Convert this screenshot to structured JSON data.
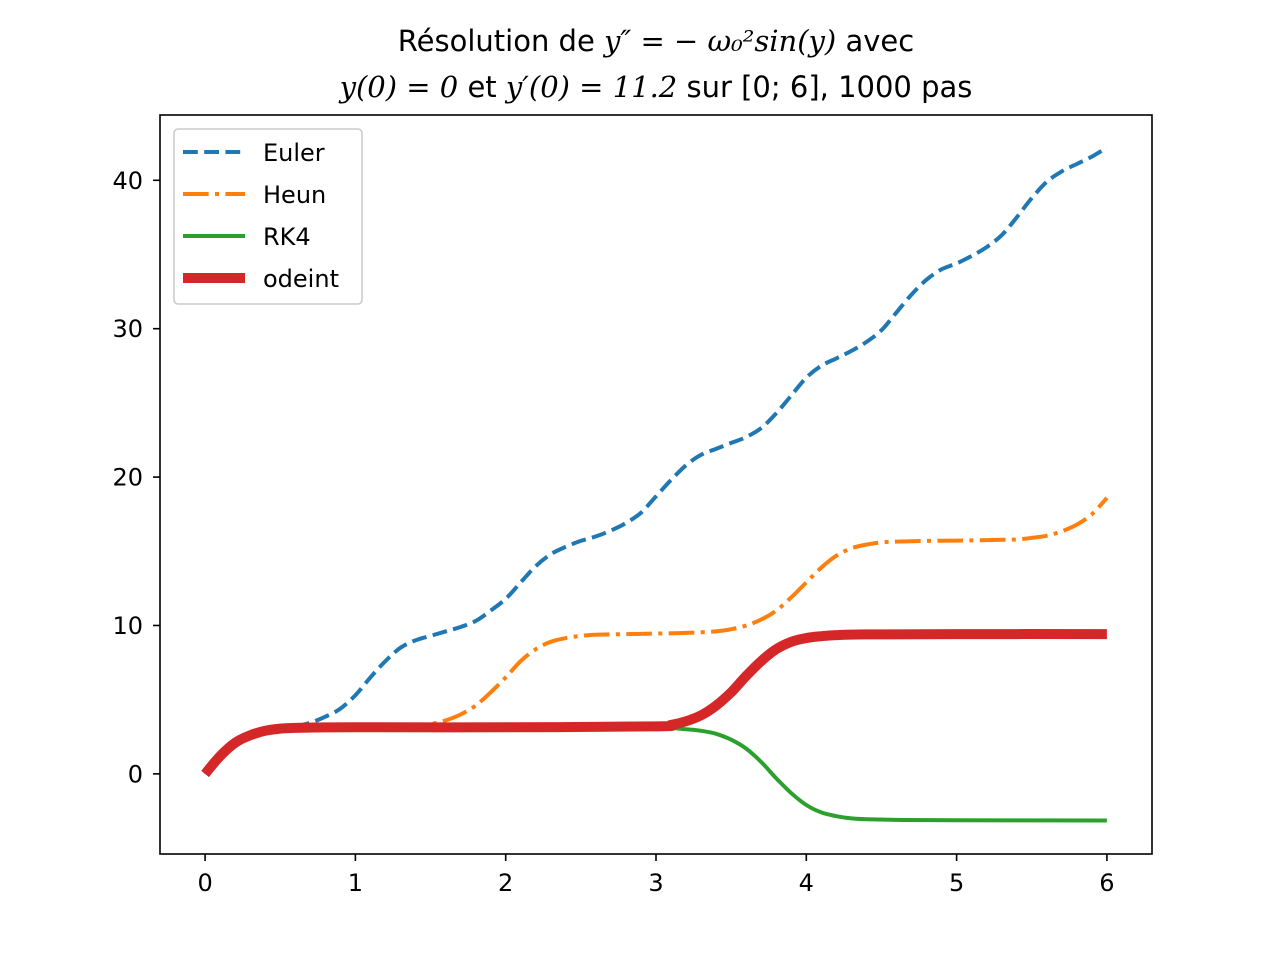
{
  "chart_data": {
    "type": "line",
    "title_line1_prefix": "Résolution de",
    "title_line1_equation": "y″ = − ω₀²sin(y)",
    "title_line1_suffix": "avec",
    "title_line2_cond1": "y(0) = 0",
    "title_line2_mid": "et",
    "title_line2_cond2": "y′(0) = 11.2",
    "title_line2_suffix": "sur [0; 6], 1000 pas",
    "xlabel": "",
    "ylabel": "",
    "xlim": [
      -0.3,
      6.3
    ],
    "ylim": [
      -5.4,
      44.4
    ],
    "xticks": [
      0,
      1,
      2,
      3,
      4,
      5,
      6
    ],
    "yticks": [
      0,
      10,
      20,
      30,
      40
    ],
    "grid": false,
    "legend_position": "top-left",
    "series": [
      {
        "name": "Euler",
        "color": "#1f77b4",
        "style": "dashed",
        "points": [
          [
            0,
            0
          ],
          [
            0.1,
            1.2
          ],
          [
            0.2,
            2.1
          ],
          [
            0.3,
            2.6
          ],
          [
            0.4,
            2.9
          ],
          [
            0.5,
            3.1
          ],
          [
            0.6,
            3.2
          ],
          [
            0.7,
            3.45
          ],
          [
            0.8,
            3.85
          ],
          [
            0.9,
            4.4
          ],
          [
            1.0,
            5.3
          ],
          [
            1.1,
            6.5
          ],
          [
            1.2,
            7.6
          ],
          [
            1.3,
            8.5
          ],
          [
            1.4,
            9.0
          ],
          [
            1.5,
            9.3
          ],
          [
            1.6,
            9.6
          ],
          [
            1.7,
            9.9
          ],
          [
            1.8,
            10.3
          ],
          [
            1.9,
            11.0
          ],
          [
            2.0,
            11.8
          ],
          [
            2.1,
            12.9
          ],
          [
            2.2,
            14.0
          ],
          [
            2.3,
            14.8
          ],
          [
            2.4,
            15.3
          ],
          [
            2.5,
            15.7
          ],
          [
            2.6,
            16.0
          ],
          [
            2.7,
            16.4
          ],
          [
            2.8,
            16.9
          ],
          [
            2.9,
            17.6
          ],
          [
            3.0,
            18.7
          ],
          [
            3.1,
            19.8
          ],
          [
            3.2,
            20.8
          ],
          [
            3.3,
            21.5
          ],
          [
            3.4,
            21.9
          ],
          [
            3.5,
            22.3
          ],
          [
            3.6,
            22.7
          ],
          [
            3.7,
            23.3
          ],
          [
            3.8,
            24.3
          ],
          [
            3.9,
            25.5
          ],
          [
            4.0,
            26.7
          ],
          [
            4.1,
            27.5
          ],
          [
            4.2,
            28.0
          ],
          [
            4.3,
            28.5
          ],
          [
            4.4,
            29.1
          ],
          [
            4.5,
            29.9
          ],
          [
            4.6,
            31.1
          ],
          [
            4.7,
            32.3
          ],
          [
            4.8,
            33.3
          ],
          [
            4.9,
            34.0
          ],
          [
            5.0,
            34.4
          ],
          [
            5.1,
            34.9
          ],
          [
            5.2,
            35.5
          ],
          [
            5.3,
            36.3
          ],
          [
            5.4,
            37.5
          ],
          [
            5.5,
            38.8
          ],
          [
            5.6,
            39.9
          ],
          [
            5.7,
            40.6
          ],
          [
            5.8,
            41.1
          ],
          [
            5.9,
            41.6
          ],
          [
            6.0,
            42.2
          ]
        ]
      },
      {
        "name": "Heun",
        "color": "#ff7f0e",
        "style": "dashdot",
        "points": [
          [
            0,
            0
          ],
          [
            0.1,
            1.2
          ],
          [
            0.2,
            2.1
          ],
          [
            0.3,
            2.6
          ],
          [
            0.4,
            2.9
          ],
          [
            0.5,
            3.05
          ],
          [
            0.6,
            3.1
          ],
          [
            0.8,
            3.13
          ],
          [
            1.0,
            3.14
          ],
          [
            1.2,
            3.15
          ],
          [
            1.4,
            3.2
          ],
          [
            1.5,
            3.35
          ],
          [
            1.6,
            3.6
          ],
          [
            1.7,
            4.0
          ],
          [
            1.8,
            4.6
          ],
          [
            1.9,
            5.5
          ],
          [
            2.0,
            6.5
          ],
          [
            2.1,
            7.6
          ],
          [
            2.2,
            8.4
          ],
          [
            2.3,
            8.9
          ],
          [
            2.4,
            9.15
          ],
          [
            2.5,
            9.3
          ],
          [
            2.6,
            9.38
          ],
          [
            2.8,
            9.42
          ],
          [
            3.0,
            9.45
          ],
          [
            3.2,
            9.5
          ],
          [
            3.4,
            9.6
          ],
          [
            3.5,
            9.75
          ],
          [
            3.6,
            10.0
          ],
          [
            3.7,
            10.4
          ],
          [
            3.8,
            11.0
          ],
          [
            3.9,
            11.9
          ],
          [
            4.0,
            12.9
          ],
          [
            4.1,
            13.9
          ],
          [
            4.2,
            14.7
          ],
          [
            4.3,
            15.2
          ],
          [
            4.4,
            15.45
          ],
          [
            4.5,
            15.6
          ],
          [
            4.6,
            15.65
          ],
          [
            4.8,
            15.7
          ],
          [
            5.0,
            15.72
          ],
          [
            5.2,
            15.75
          ],
          [
            5.4,
            15.8
          ],
          [
            5.5,
            15.9
          ],
          [
            5.6,
            16.05
          ],
          [
            5.7,
            16.35
          ],
          [
            5.8,
            16.8
          ],
          [
            5.9,
            17.5
          ],
          [
            6.0,
            18.6
          ]
        ]
      },
      {
        "name": "RK4",
        "color": "#2ca02c",
        "style": "solid",
        "points": [
          [
            0,
            0
          ],
          [
            0.1,
            1.2
          ],
          [
            0.2,
            2.1
          ],
          [
            0.3,
            2.6
          ],
          [
            0.4,
            2.9
          ],
          [
            0.5,
            3.05
          ],
          [
            0.6,
            3.1
          ],
          [
            0.8,
            3.13
          ],
          [
            1.0,
            3.14
          ],
          [
            2.0,
            3.14
          ],
          [
            3.0,
            3.1
          ],
          [
            3.2,
            3.0
          ],
          [
            3.3,
            2.9
          ],
          [
            3.4,
            2.7
          ],
          [
            3.5,
            2.3
          ],
          [
            3.6,
            1.7
          ],
          [
            3.7,
            0.8
          ],
          [
            3.8,
            -0.3
          ],
          [
            3.9,
            -1.3
          ],
          [
            4.0,
            -2.1
          ],
          [
            4.1,
            -2.6
          ],
          [
            4.2,
            -2.85
          ],
          [
            4.3,
            -3.0
          ],
          [
            4.4,
            -3.06
          ],
          [
            4.6,
            -3.1
          ],
          [
            5.0,
            -3.13
          ],
          [
            6.0,
            -3.14
          ]
        ]
      },
      {
        "name": "odeint",
        "color": "#d62728",
        "style": "solid-thick",
        "points": [
          [
            0,
            0
          ],
          [
            0.1,
            1.2
          ],
          [
            0.2,
            2.1
          ],
          [
            0.3,
            2.6
          ],
          [
            0.4,
            2.9
          ],
          [
            0.5,
            3.05
          ],
          [
            0.6,
            3.1
          ],
          [
            0.8,
            3.13
          ],
          [
            1.0,
            3.14
          ],
          [
            2.0,
            3.14
          ],
          [
            3.0,
            3.2
          ],
          [
            3.1,
            3.3
          ],
          [
            3.2,
            3.55
          ],
          [
            3.3,
            3.95
          ],
          [
            3.4,
            4.6
          ],
          [
            3.5,
            5.5
          ],
          [
            3.6,
            6.6
          ],
          [
            3.7,
            7.6
          ],
          [
            3.8,
            8.4
          ],
          [
            3.9,
            8.9
          ],
          [
            4.0,
            9.15
          ],
          [
            4.1,
            9.28
          ],
          [
            4.2,
            9.35
          ],
          [
            4.4,
            9.4
          ],
          [
            5.0,
            9.42
          ],
          [
            6.0,
            9.42
          ]
        ]
      }
    ]
  }
}
